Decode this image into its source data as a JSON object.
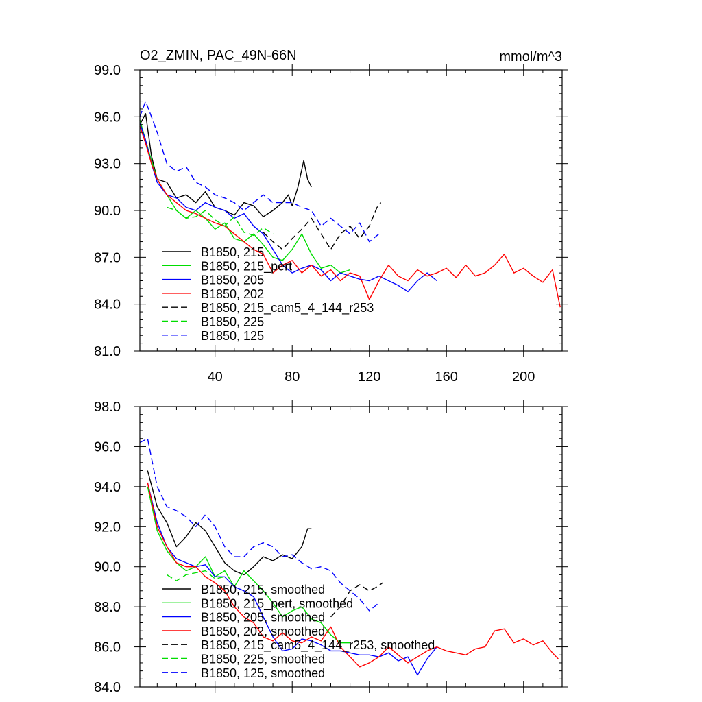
{
  "chart_data": [
    {
      "type": "line",
      "title_left": "O2_ZMIN, PAC_49N-66N",
      "title_right": "mmol/m^3",
      "xlim": [
        1,
        220
      ],
      "ylim": [
        81.0,
        99.0
      ],
      "xticks": [
        40,
        80,
        120,
        160,
        200
      ],
      "xtick_labels": [
        "40",
        "80",
        "120",
        "160",
        "200"
      ],
      "yticks": [
        81.0,
        84.0,
        87.0,
        90.0,
        93.0,
        96.0,
        99.0
      ],
      "ytick_labels": [
        "81.0",
        "84.0",
        "87.0",
        "90.0",
        "93.0",
        "96.0",
        "99.0"
      ],
      "series": [
        {
          "name": "B1850, 215",
          "color": "#000000",
          "dash": "solid",
          "x": [
            1,
            4,
            7,
            10,
            15,
            20,
            25,
            30,
            35,
            40,
            45,
            50,
            55,
            60,
            65,
            70,
            75,
            78,
            80,
            83,
            86,
            88,
            90
          ],
          "y": [
            95.5,
            96.2,
            93.5,
            92.0,
            91.8,
            90.8,
            91.0,
            90.5,
            91.2,
            90.2,
            90.0,
            89.7,
            90.5,
            90.3,
            89.6,
            90.0,
            90.5,
            91.0,
            90.3,
            91.5,
            93.2,
            92.0,
            91.5
          ]
        },
        {
          "name": "B1850, 215_pert",
          "color": "#00dd00",
          "dash": "solid",
          "x": [
            1,
            4,
            7,
            10,
            15,
            20,
            25,
            30,
            35,
            40,
            45,
            50,
            55,
            60,
            65,
            70,
            75,
            80,
            85,
            90,
            95,
            100,
            105,
            110
          ],
          "y": [
            95.8,
            94.5,
            93.2,
            92.0,
            91.0,
            90.0,
            89.5,
            90.0,
            89.5,
            88.8,
            89.2,
            88.2,
            88.0,
            88.5,
            87.8,
            87.0,
            86.8,
            87.5,
            88.5,
            87.2,
            86.3,
            86.5,
            86.0,
            86.2
          ]
        },
        {
          "name": "B1850, 205",
          "color": "#0000ff",
          "dash": "solid",
          "x": [
            1,
            4,
            7,
            10,
            15,
            20,
            25,
            30,
            35,
            40,
            45,
            50,
            55,
            60,
            65,
            70,
            75,
            80,
            85,
            90,
            95,
            100,
            105,
            110,
            115,
            120,
            125,
            130,
            135,
            140,
            145,
            150,
            155
          ],
          "y": [
            95.6,
            94.5,
            93.0,
            91.8,
            91.0,
            90.8,
            90.2,
            90.0,
            90.5,
            90.2,
            90.0,
            89.5,
            89.8,
            89.0,
            88.5,
            87.5,
            86.5,
            86.0,
            86.3,
            86.5,
            86.2,
            85.5,
            86.0,
            85.8,
            85.6,
            85.5,
            85.8,
            85.5,
            85.2,
            84.8,
            85.5,
            86.0,
            85.5
          ]
        },
        {
          "name": "B1850, 202",
          "color": "#ff0000",
          "dash": "solid",
          "x": [
            1,
            4,
            7,
            10,
            15,
            20,
            25,
            30,
            35,
            40,
            45,
            50,
            55,
            60,
            65,
            70,
            75,
            80,
            85,
            90,
            95,
            100,
            105,
            110,
            115,
            120,
            125,
            130,
            135,
            140,
            145,
            150,
            155,
            160,
            165,
            170,
            175,
            180,
            185,
            190,
            195,
            200,
            205,
            210,
            215,
            219
          ],
          "y": [
            95.4,
            94.3,
            93.0,
            92.0,
            91.0,
            90.5,
            90.0,
            89.8,
            89.5,
            89.2,
            89.0,
            88.5,
            88.0,
            87.5,
            87.2,
            86.0,
            86.5,
            86.8,
            86.0,
            86.5,
            85.8,
            86.2,
            85.5,
            86.0,
            85.8,
            84.3,
            85.5,
            86.5,
            85.8,
            85.5,
            86.2,
            85.8,
            86.0,
            86.3,
            85.7,
            86.5,
            85.8,
            86.0,
            86.5,
            87.2,
            86.0,
            86.3,
            85.8,
            85.4,
            86.2,
            83.8
          ]
        },
        {
          "name": "B1850, 215_cam5_4_144_r253",
          "color": "#000000",
          "dash": "dashed",
          "x": [
            65,
            70,
            75,
            80,
            85,
            90,
            95,
            100,
            105,
            110,
            115,
            120,
            124,
            126
          ],
          "y": [
            88.6,
            88.0,
            87.5,
            88.2,
            88.8,
            89.5,
            88.5,
            87.5,
            88.5,
            89.0,
            88.2,
            89.0,
            90.2,
            90.5
          ]
        },
        {
          "name": "B1850, 225",
          "color": "#00dd00",
          "dash": "dashed",
          "x": [
            15,
            20,
            25,
            30,
            35,
            40,
            45,
            50,
            55,
            60,
            65,
            70
          ],
          "y": [
            90.2,
            90.0,
            89.5,
            89.6,
            90.0,
            89.4,
            89.0,
            89.6,
            88.6,
            88.4,
            88.9,
            88.5
          ]
        },
        {
          "name": "B1850, 125",
          "color": "#0000ff",
          "dash": "dashed",
          "x": [
            1,
            4,
            7,
            10,
            15,
            20,
            25,
            30,
            35,
            40,
            45,
            50,
            55,
            60,
            65,
            70,
            75,
            80,
            85,
            90,
            95,
            100,
            105,
            110,
            115,
            120,
            125
          ],
          "y": [
            96.0,
            97.0,
            96.0,
            95.0,
            93.0,
            92.5,
            92.8,
            91.8,
            91.5,
            91.0,
            90.8,
            90.5,
            90.0,
            90.5,
            91.0,
            90.5,
            90.5,
            90.5,
            90.2,
            90.0,
            89.0,
            89.5,
            89.0,
            88.5,
            89.2,
            88.0,
            88.5
          ]
        }
      ]
    },
    {
      "type": "line",
      "xlim": [
        1,
        220
      ],
      "ylim": [
        84.0,
        98.0
      ],
      "xticks": [
        40,
        80,
        120,
        160,
        200
      ],
      "yticks": [
        84.0,
        86.0,
        88.0,
        90.0,
        92.0,
        94.0,
        96.0,
        98.0
      ],
      "ytick_labels": [
        "84.0",
        "86.0",
        "88.0",
        "90.0",
        "92.0",
        "94.0",
        "96.0",
        "98.0"
      ],
      "series": [
        {
          "name": "B1850, 215, smoothed",
          "color": "#000000",
          "dash": "solid",
          "x": [
            5,
            10,
            15,
            20,
            25,
            30,
            35,
            40,
            45,
            50,
            55,
            60,
            65,
            70,
            75,
            80,
            85,
            88,
            90
          ],
          "y": [
            94.8,
            93.0,
            92.2,
            91.0,
            91.5,
            92.2,
            91.8,
            91.0,
            90.2,
            89.8,
            89.6,
            90.0,
            90.5,
            90.3,
            90.6,
            90.4,
            91.0,
            91.9,
            91.9
          ]
        },
        {
          "name": "B1850, 215_pert, smoothed",
          "color": "#00dd00",
          "dash": "solid",
          "x": [
            5,
            10,
            15,
            20,
            25,
            30,
            35,
            40,
            45,
            50,
            55,
            60,
            65,
            70,
            75,
            80,
            85,
            90,
            95,
            100,
            105,
            110
          ],
          "y": [
            94.0,
            91.8,
            90.8,
            90.2,
            89.8,
            90.0,
            90.5,
            89.5,
            89.8,
            89.0,
            89.8,
            89.3,
            88.8,
            88.2,
            87.5,
            87.8,
            88.0,
            87.4,
            87.2,
            86.6,
            86.2,
            86.2
          ]
        },
        {
          "name": "B1850, 205, smoothed",
          "color": "#0000ff",
          "dash": "solid",
          "x": [
            5,
            10,
            15,
            20,
            25,
            30,
            35,
            40,
            45,
            50,
            55,
            60,
            65,
            70,
            75,
            80,
            85,
            90,
            95,
            100,
            105,
            110,
            115,
            120,
            125,
            130,
            135,
            140,
            145,
            150,
            155
          ],
          "y": [
            94.2,
            92.2,
            91.0,
            90.4,
            90.2,
            90.0,
            90.1,
            89.5,
            89.5,
            89.0,
            88.8,
            88.5,
            87.5,
            86.5,
            85.8,
            85.9,
            86.4,
            86.3,
            86.1,
            85.8,
            85.8,
            85.7,
            85.6,
            85.6,
            85.5,
            85.7,
            85.3,
            85.5,
            84.6,
            85.4,
            86.0
          ]
        },
        {
          "name": "B1850, 202, smoothed",
          "color": "#ff0000",
          "dash": "solid",
          "x": [
            5,
            10,
            15,
            20,
            25,
            30,
            35,
            40,
            45,
            50,
            55,
            60,
            65,
            70,
            75,
            80,
            85,
            90,
            95,
            100,
            105,
            110,
            115,
            120,
            125,
            130,
            135,
            140,
            145,
            150,
            155,
            160,
            165,
            170,
            175,
            180,
            185,
            190,
            195,
            200,
            205,
            210,
            215,
            218
          ],
          "y": [
            94.2,
            92.0,
            91.0,
            90.2,
            90.0,
            90.0,
            89.5,
            89.2,
            88.8,
            88.0,
            87.5,
            87.2,
            86.5,
            86.3,
            86.7,
            86.3,
            86.2,
            86.5,
            86.3,
            87.0,
            86.0,
            85.5,
            85.0,
            85.2,
            85.5,
            86.0,
            85.6,
            85.2,
            85.5,
            85.8,
            86.0,
            85.8,
            85.7,
            85.6,
            85.9,
            86.0,
            86.8,
            86.9,
            86.2,
            86.4,
            86.1,
            86.3,
            85.7,
            85.4
          ]
        },
        {
          "name": "B1850, 215_cam5_4_144_r253, smoothed",
          "color": "#000000",
          "dash": "dashed",
          "x": [
            100,
            105,
            110,
            115,
            120,
            124,
            127
          ],
          "y": [
            87.5,
            88.0,
            88.8,
            89.1,
            88.8,
            89.0,
            89.2
          ]
        },
        {
          "name": "B1850, 225, smoothed",
          "color": "#00dd00",
          "dash": "dashed",
          "x": [
            15,
            20,
            25,
            30,
            35,
            40,
            45
          ],
          "y": [
            89.6,
            89.3,
            89.6,
            89.7,
            89.8,
            89.4,
            89.5
          ]
        },
        {
          "name": "B1850, 125, smoothed",
          "color": "#0000ff",
          "dash": "dashed",
          "x": [
            1,
            5,
            10,
            15,
            20,
            25,
            30,
            35,
            40,
            45,
            50,
            55,
            60,
            65,
            70,
            75,
            80,
            85,
            90,
            95,
            100,
            105,
            110,
            115,
            120,
            125
          ],
          "y": [
            96.2,
            96.4,
            94.0,
            93.0,
            92.8,
            92.5,
            92.0,
            92.6,
            92.0,
            91.0,
            90.5,
            90.5,
            91.0,
            91.2,
            91.0,
            90.5,
            90.6,
            90.2,
            89.9,
            90.0,
            89.8,
            89.2,
            88.8,
            88.4,
            87.8,
            88.2
          ]
        }
      ]
    }
  ]
}
